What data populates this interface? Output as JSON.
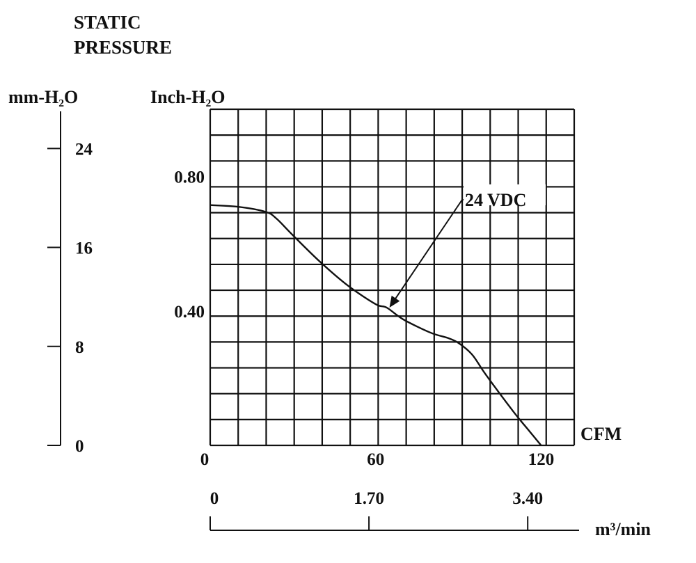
{
  "chart_data": {
    "type": "line",
    "title": "STATIC\nPRESSURE",
    "title_lines": [
      "STATIC",
      "PRESSURE"
    ],
    "ylabel_left": "mm-H₂O",
    "ylabel_main": "Inch-H₂O",
    "xlabel_main": "CFM",
    "xlabel_secondary": "m³/min",
    "xlim": [
      0,
      132
    ],
    "ylim": [
      0,
      1.0
    ],
    "grid": true,
    "grid_cols": 13,
    "grid_rows": 13,
    "y_ticks": [
      {
        "value": 0.4,
        "label": "0.40"
      },
      {
        "value": 0.8,
        "label": "0.80"
      }
    ],
    "x_ticks": [
      {
        "value": 0,
        "label": "0"
      },
      {
        "value": 60,
        "label": "60"
      },
      {
        "value": 120,
        "label": "120"
      }
    ],
    "mm_ticks": [
      {
        "value": 0,
        "label": "0"
      },
      {
        "value": 8,
        "label": "8"
      },
      {
        "value": 16,
        "label": "16"
      },
      {
        "value": 24,
        "label": "24"
      }
    ],
    "mm_axis_max": 27,
    "m3_ticks": [
      {
        "value": 0,
        "label": "0"
      },
      {
        "value": 1.7,
        "label": "1.70"
      },
      {
        "value": 3.4,
        "label": "3.40"
      }
    ],
    "m3_axis_max": 3.95,
    "series": [
      {
        "name": "24 VDC",
        "x": [
          0,
          10,
          20,
          24,
          30,
          40,
          50,
          60,
          64,
          70,
          80,
          86,
          90,
          95,
          100,
          110,
          115,
          120
        ],
        "y": [
          0.715,
          0.71,
          0.695,
          0.675,
          0.625,
          0.545,
          0.475,
          0.42,
          0.41,
          0.375,
          0.335,
          0.32,
          0.305,
          0.27,
          0.21,
          0.1,
          0.05,
          0.0
        ]
      }
    ],
    "annotation": {
      "text": "24 VDC",
      "point": {
        "x": 65,
        "y": 0.41
      }
    }
  }
}
